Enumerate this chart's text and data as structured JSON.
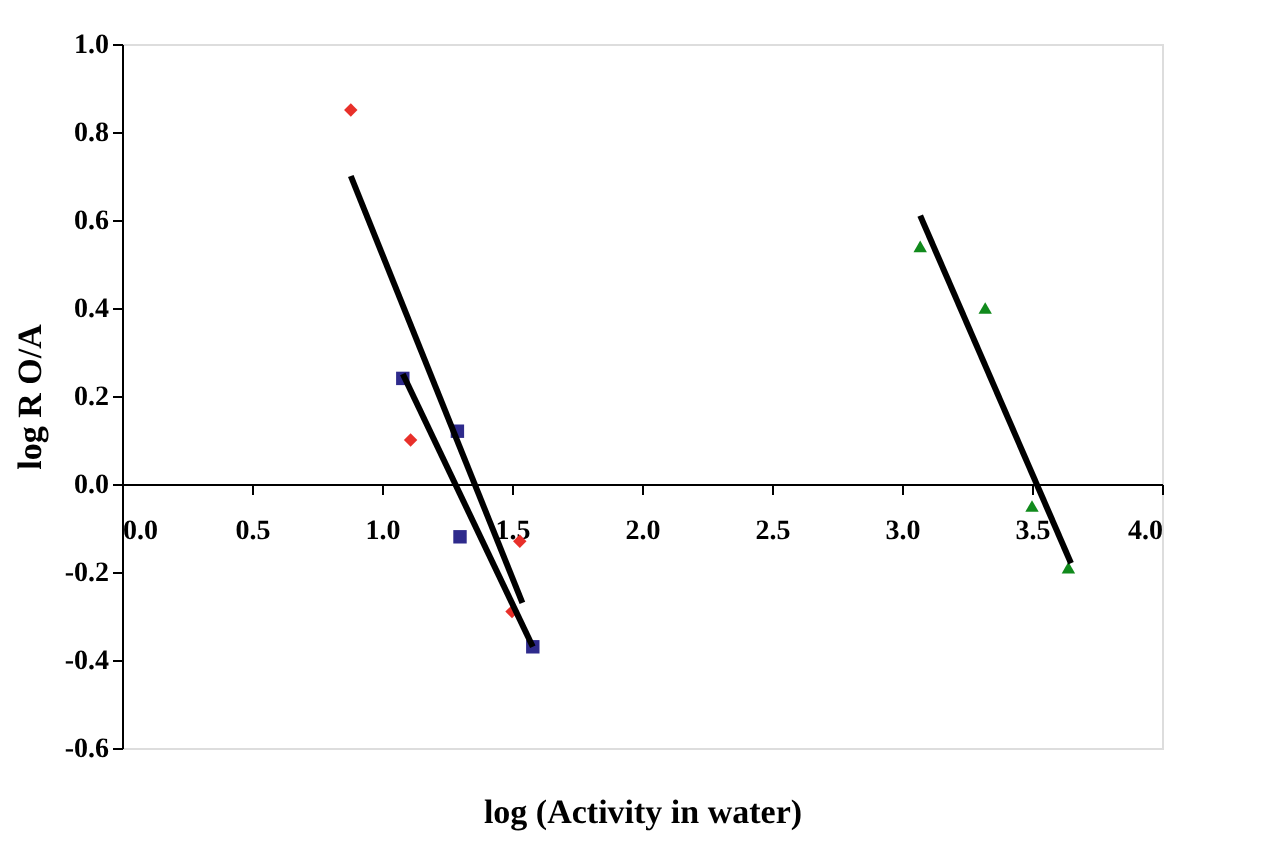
{
  "chart_data": {
    "type": "scatter",
    "xlabel": "log (Activity in water)",
    "ylabel": "log R O/A",
    "xlim": [
      0,
      4
    ],
    "ylim": [
      -0.6,
      1.0
    ],
    "xticks": [
      {
        "value": 0,
        "label": "0.0"
      },
      0.5,
      {
        "value": 1,
        "label": "1.0"
      },
      1.5,
      {
        "value": 2,
        "label": "2.0"
      },
      2.5,
      {
        "value": 3,
        "label": "3.0"
      },
      3.5,
      {
        "value": 4,
        "label": "4.0"
      }
    ],
    "yticks": [
      {
        "value": -0.6,
        "label": "-0.6"
      },
      {
        "value": -0.4,
        "label": "-0.4"
      },
      {
        "value": -0.2,
        "label": "-0.2"
      },
      {
        "value": 0,
        "label": "0.0"
      },
      0.2,
      0.4,
      0.6,
      0.8,
      {
        "value": 1,
        "label": "1.0"
      }
    ],
    "grid": false,
    "series": [
      {
        "marker": "diamond",
        "color": "#e8302a",
        "x": [
          0.88,
          1.11,
          1.53,
          1.5
        ],
        "values": [
          0.85,
          0.1,
          -0.13,
          -0.29
        ]
      },
      {
        "marker": "square",
        "color": "#2e2a8c",
        "x": [
          1.08,
          1.29,
          1.3,
          1.58
        ],
        "values": [
          0.24,
          0.12,
          -0.12,
          -0.37
        ]
      },
      {
        "marker": "triangle",
        "color": "#118a1c",
        "x": [
          3.07,
          3.32,
          3.5,
          3.64
        ],
        "values": [
          0.54,
          0.4,
          -0.05,
          -0.19
        ]
      },
      {
        "type": "line",
        "marker": "none",
        "line_style": "solid",
        "color": "#000000",
        "x": [
          0.88,
          1.54
        ],
        "values": [
          0.7,
          -0.27
        ]
      },
      {
        "type": "line",
        "marker": "none",
        "line_style": "solid",
        "color": "#000000",
        "x": [
          1.08,
          1.58
        ],
        "values": [
          0.25,
          -0.37
        ]
      },
      {
        "type": "line",
        "marker": "none",
        "line_style": "solid",
        "color": "#000000",
        "x": [
          3.07,
          3.65
        ],
        "values": [
          0.61,
          -0.18
        ]
      }
    ]
  }
}
